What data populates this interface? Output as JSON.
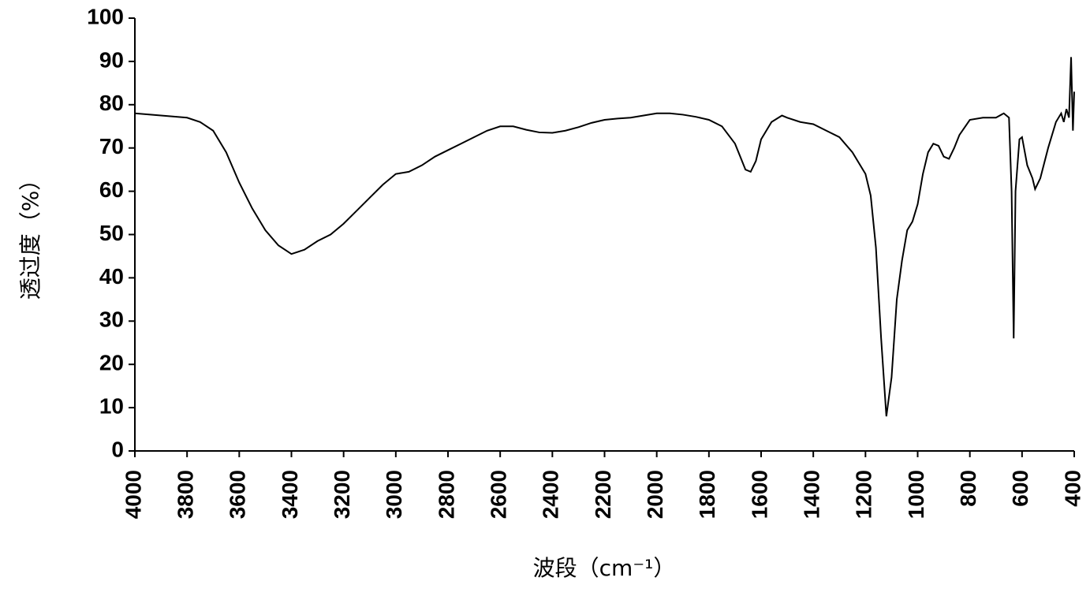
{
  "chart_data": {
    "type": "line",
    "x_label": "波段（cm⁻¹）",
    "y_label": "透过度（%）",
    "xlim": [
      4000,
      400
    ],
    "ylim": [
      0,
      100
    ],
    "xticks": [
      4000,
      3800,
      3600,
      3400,
      3200,
      3000,
      2800,
      2600,
      2400,
      2200,
      2000,
      1800,
      1600,
      1400,
      1200,
      1000,
      800,
      600,
      400
    ],
    "yticks": [
      0,
      10,
      20,
      30,
      40,
      50,
      60,
      70,
      80,
      90,
      100
    ],
    "series": [
      {
        "color": "#000000",
        "x": [
          4000,
          3900,
          3800,
          3750,
          3700,
          3650,
          3600,
          3550,
          3500,
          3450,
          3400,
          3350,
          3300,
          3250,
          3200,
          3150,
          3100,
          3050,
          3000,
          2950,
          2900,
          2850,
          2800,
          2750,
          2700,
          2650,
          2600,
          2550,
          2500,
          2450,
          2400,
          2350,
          2300,
          2250,
          2200,
          2150,
          2100,
          2050,
          2000,
          1950,
          1900,
          1850,
          1800,
          1750,
          1700,
          1680,
          1660,
          1640,
          1620,
          1600,
          1560,
          1520,
          1500,
          1450,
          1400,
          1350,
          1300,
          1250,
          1200,
          1180,
          1160,
          1140,
          1120,
          1100,
          1080,
          1060,
          1040,
          1020,
          1000,
          980,
          960,
          940,
          920,
          900,
          880,
          860,
          840,
          800,
          750,
          700,
          670,
          650,
          640,
          632,
          625,
          610,
          600,
          580,
          560,
          550,
          530,
          500,
          470,
          450,
          440,
          430,
          420,
          412,
          405,
          400
        ],
        "values": [
          78,
          77.5,
          77,
          76,
          74,
          69,
          62,
          56,
          51,
          47.5,
          45.5,
          46.5,
          48.5,
          50,
          52.5,
          55.5,
          58.5,
          61.5,
          64,
          64.5,
          66,
          68,
          69.5,
          71,
          72.5,
          74,
          75,
          75,
          74.2,
          73.6,
          73.5,
          74,
          74.8,
          75.8,
          76.5,
          76.8,
          77,
          77.5,
          78,
          78,
          77.7,
          77.2,
          76.5,
          75,
          71,
          68,
          65,
          64.5,
          67,
          72,
          76,
          77.5,
          77,
          76,
          75.5,
          74,
          72.5,
          69,
          64,
          59,
          47,
          26,
          8,
          17,
          35,
          44,
          51,
          53,
          57,
          64,
          69,
          71,
          70.5,
          68,
          67.5,
          70,
          73,
          76.5,
          77,
          77,
          78,
          77,
          60,
          26,
          60,
          72,
          72.5,
          66,
          63,
          60.5,
          63,
          70,
          76,
          78,
          76,
          79,
          77,
          91,
          74,
          83
        ]
      }
    ]
  }
}
